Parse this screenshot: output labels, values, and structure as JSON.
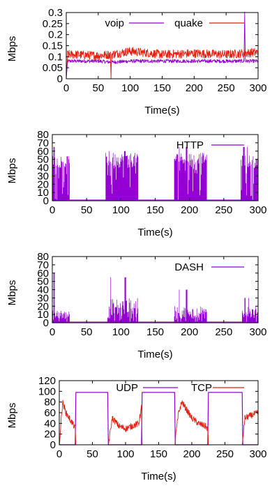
{
  "colors": {
    "voip": "#9400d3",
    "quake": "#e51e10",
    "http": "#9400d3",
    "dash": "#9400d3",
    "udp": "#9400d3",
    "tcp": "#e51e10"
  },
  "chart_data": [
    {
      "type": "line",
      "title": "",
      "xlabel": "Time(s)",
      "ylabel": "Mbps",
      "xlim": [
        0,
        300
      ],
      "ylim": [
        0,
        0.3
      ],
      "xticks": [
        "0",
        "50",
        "100",
        "150",
        "200",
        "250",
        "300"
      ],
      "yticks": [
        "0",
        "0.05",
        "0.1",
        "0.15",
        "0.2",
        "0.25",
        "0.3"
      ],
      "legend": "top",
      "grid": false,
      "series": [
        {
          "name": "voip",
          "color": "#9400d3",
          "description": "steady around 0.08 Mbps with small fluctuations, spike to 0.3 near t=280",
          "x": [
            0,
            2,
            10,
            50,
            70,
            100,
            150,
            200,
            250,
            278,
            279,
            280,
            300
          ],
          "y": [
            0,
            0.08,
            0.08,
            0.08,
            0.075,
            0.08,
            0.08,
            0.08,
            0.08,
            0.08,
            0.3,
            0.08,
            0.08
          ]
        },
        {
          "name": "quake",
          "color": "#e51e10",
          "description": "noisy around 0.11 Mbps, dip to 0 near t=70",
          "x": [
            0,
            2,
            10,
            50,
            69,
            70,
            71,
            100,
            150,
            200,
            250,
            300
          ],
          "y": [
            0,
            0.11,
            0.11,
            0.105,
            0.11,
            0.0,
            0.11,
            0.125,
            0.11,
            0.115,
            0.11,
            0.12
          ]
        }
      ]
    },
    {
      "type": "bar",
      "title": "",
      "xlabel": "Time(s)",
      "ylabel": "Mbps",
      "xlim": [
        0,
        300
      ],
      "ylim": [
        0,
        80
      ],
      "xticks": [
        "0",
        "50",
        "100",
        "150",
        "200",
        "250",
        "300"
      ],
      "yticks": [
        "0",
        "10",
        "20",
        "30",
        "40",
        "50",
        "60",
        "70",
        "80"
      ],
      "legend": "top-right",
      "grid": false,
      "series": [
        {
          "name": "HTTP",
          "color": "#9400d3",
          "bursts": [
            {
              "x": [
                0,
                25
              ],
              "level": [
                40,
                55
              ],
              "peak": 65
            },
            {
              "x": [
                78,
                125
              ],
              "level": [
                40,
                58
              ],
              "peak": 60
            },
            {
              "x": [
                178,
                225
              ],
              "level": [
                45,
                58
              ],
              "peak": 65
            },
            {
              "x": [
                275,
                300
              ],
              "level": [
                40,
                55
              ],
              "peak": 65
            }
          ],
          "baseline": 1
        }
      ]
    },
    {
      "type": "bar",
      "title": "",
      "xlabel": "Time(s)",
      "ylabel": "Mbps",
      "xlim": [
        0,
        300
      ],
      "ylim": [
        0,
        80
      ],
      "xticks": [
        "0",
        "50",
        "100",
        "150",
        "200",
        "250",
        "300"
      ],
      "yticks": [
        "0",
        "10",
        "20",
        "30",
        "40",
        "50",
        "60",
        "70",
        "80"
      ],
      "legend": "top-right",
      "grid": false,
      "series": [
        {
          "name": "DASH",
          "color": "#9400d3",
          "bursts": [
            {
              "x": [
                0,
                25
              ],
              "level": [
                5,
                15
              ],
              "peak": 60
            },
            {
              "x": [
                80,
                125
              ],
              "level": [
                5,
                30
              ],
              "peak": 55
            },
            {
              "x": [
                178,
                225
              ],
              "level": [
                5,
                20
              ],
              "peak": 40
            },
            {
              "x": [
                277,
                300
              ],
              "level": [
                5,
                20
              ],
              "peak": 30
            }
          ],
          "baseline": 1
        }
      ]
    },
    {
      "type": "line",
      "title": "",
      "xlabel": "Time(s)",
      "ylabel": "Mbps",
      "xlim": [
        0,
        300
      ],
      "ylim": [
        0,
        120
      ],
      "xticks": [
        "0",
        "50",
        "100",
        "150",
        "200",
        "250",
        "300"
      ],
      "yticks": [
        "0",
        "20",
        "40",
        "60",
        "80",
        "100",
        "120"
      ],
      "legend": "top",
      "grid": false,
      "series": [
        {
          "name": "UDP",
          "color": "#9400d3",
          "x": [
            0,
            24,
            25,
            73,
            74,
            124,
            125,
            174,
            175,
            224,
            225,
            276,
            277,
            300
          ],
          "y": [
            0,
            0,
            98,
            98,
            0,
            0,
            98,
            98,
            0,
            0,
            98,
            98,
            0,
            0
          ]
        },
        {
          "name": "TCP",
          "color": "#e51e10",
          "x": [
            0,
            5,
            10,
            15,
            20,
            24,
            25,
            74,
            80,
            90,
            100,
            110,
            120,
            124,
            125,
            174,
            180,
            185,
            190,
            200,
            210,
            220,
            224,
            225,
            276,
            280,
            290,
            300
          ],
          "y": [
            0,
            80,
            60,
            50,
            40,
            30,
            0,
            0,
            50,
            35,
            30,
            35,
            40,
            70,
            0,
            0,
            60,
            80,
            70,
            50,
            40,
            35,
            30,
            0,
            0,
            50,
            55,
            60
          ]
        }
      ]
    }
  ]
}
